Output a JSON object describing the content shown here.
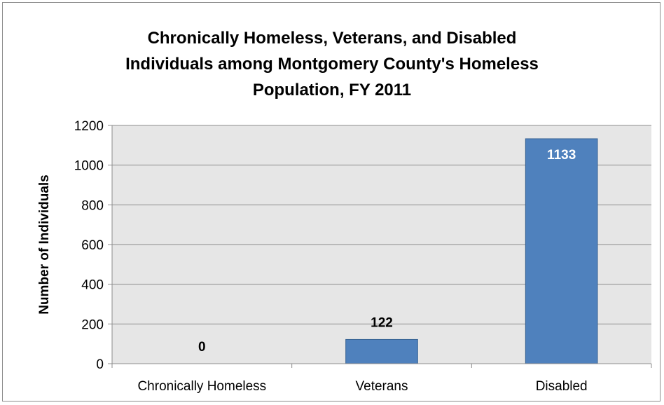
{
  "chart_data": {
    "type": "bar",
    "title_lines": [
      "Chronically Homeless, Veterans, and Disabled",
      "Individuals among Montgomery County's Homeless",
      "Population, FY 2011"
    ],
    "categories": [
      "Chronically Homeless",
      "Veterans",
      "Disabled"
    ],
    "values": [
      0,
      122,
      1133
    ],
    "data_labels": [
      "0",
      "122",
      "1133"
    ],
    "xlabel": "",
    "ylabel": "Number of Individuals",
    "ylim": [
      0,
      1200
    ],
    "yticks": [
      0,
      200,
      400,
      600,
      800,
      1000,
      1200
    ],
    "grid": true,
    "legend": "none",
    "colors": {
      "bar": "#4f81bd",
      "bar_border": "#3a6494",
      "plot_bg": "#e6e6e6",
      "grid": "#8c8c8c"
    }
  }
}
